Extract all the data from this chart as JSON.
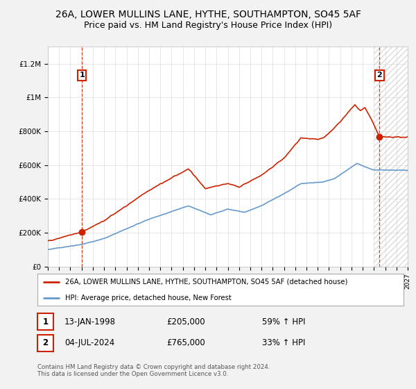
{
  "title": "26A, LOWER MULLINS LANE, HYTHE, SOUTHAMPTON, SO45 5AF",
  "subtitle": "Price paid vs. HM Land Registry's House Price Index (HPI)",
  "red_label": "26A, LOWER MULLINS LANE, HYTHE, SOUTHAMPTON, SO45 5AF (detached house)",
  "blue_label": "HPI: Average price, detached house, New Forest",
  "ann1_date": "13-JAN-1998",
  "ann1_price": "£205,000",
  "ann1_hpi": "59% ↑ HPI",
  "ann2_date": "04-JUL-2024",
  "ann2_price": "£765,000",
  "ann2_hpi": "33% ↑ HPI",
  "footer": "Contains HM Land Registry data © Crown copyright and database right 2024.\nThis data is licensed under the Open Government Licence v3.0.",
  "ylim": [
    0,
    1300000
  ],
  "xlim": [
    1995,
    2027
  ],
  "yticks": [
    0,
    200000,
    400000,
    600000,
    800000,
    1000000,
    1200000
  ],
  "ytick_labels": [
    "£0",
    "£200K",
    "£400K",
    "£600K",
    "£800K",
    "£1M",
    "£1.2M"
  ],
  "background_color": "#f2f2f2",
  "plot_bg_color": "#ffffff",
  "red_color": "#cc2200",
  "blue_color": "#6699cc",
  "grid_color": "#dddddd",
  "hatch_color": "#cccccc",
  "point1_x": 1998.04,
  "point1_y": 205000,
  "point2_x": 2024.5,
  "point2_y": 765000,
  "title_fontsize": 10,
  "subtitle_fontsize": 9
}
